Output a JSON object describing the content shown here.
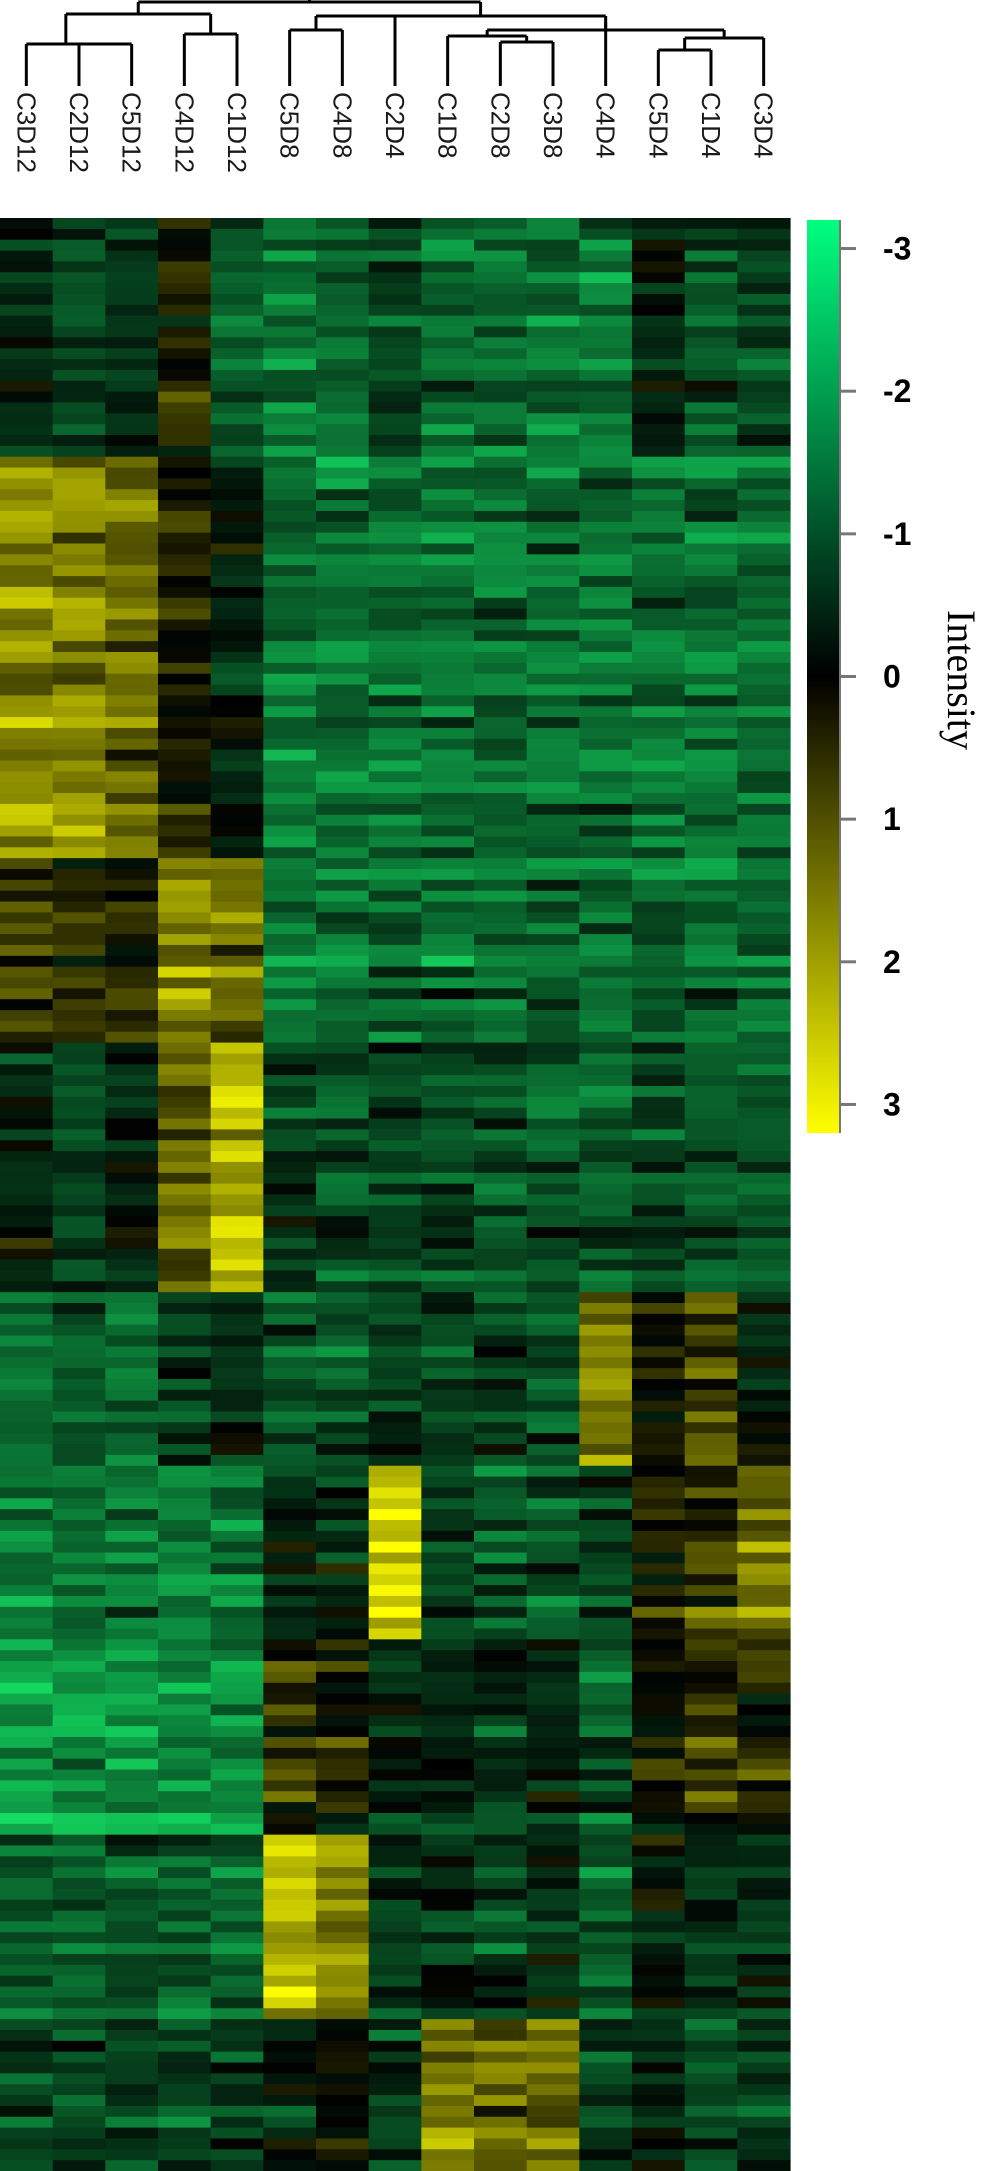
{
  "chart_data": {
    "type": "heatmap",
    "title": "",
    "columns": [
      "C3D12",
      "C2D12",
      "C5D12",
      "C4D12",
      "C1D12",
      "C5D8",
      "C4D8",
      "C2D4",
      "C1D8",
      "C2D8",
      "C3D8",
      "C4D4",
      "C5D4",
      "C1D4",
      "C3D4"
    ],
    "colorbar": {
      "label": "Intensity",
      "ticks": [
        "-3",
        "-2",
        "-1",
        "0",
        "1",
        "2",
        "3"
      ],
      "tick_values": [
        -3,
        -2,
        -1,
        0,
        1,
        2,
        3
      ],
      "range": [
        -3.2,
        3.2
      ],
      "color_low": "#00ff7f",
      "color_mid": "#000000",
      "color_high": "#ffff00"
    },
    "row_count": 180,
    "dendrogram": "hierarchical column clustering (top)",
    "block_pattern": [
      {
        "rows": [
          0,
          0.12
        ],
        "profile": [
          -0.5,
          -1.0,
          -0.5,
          0.3,
          -1.2,
          -1.5,
          -1.3,
          -0.8,
          -1.5,
          -1.3,
          -1.2,
          -1.6,
          -0.4,
          -1.0,
          -0.8
        ]
      },
      {
        "rows": [
          0.12,
          0.33
        ],
        "profile": [
          1.7,
          1.6,
          1.4,
          0.4,
          -0.3,
          -1.4,
          -1.4,
          -1.4,
          -1.4,
          -1.4,
          -1.4,
          -1.4,
          -1.4,
          -1.4,
          -1.4
        ]
      },
      {
        "rows": [
          0.33,
          0.42
        ],
        "profile": [
          0.7,
          0.3,
          0.5,
          1.6,
          1.3,
          -1.4,
          -1.4,
          -1.4,
          -1.4,
          -1.4,
          -1.4,
          -1.4,
          -1.4,
          -1.4,
          -1.4
        ]
      },
      {
        "rows": [
          0.42,
          0.55
        ],
        "profile": [
          -0.3,
          -0.8,
          -0.4,
          1.2,
          2.3,
          -0.8,
          -0.9,
          -0.7,
          -1.0,
          -1.2,
          -1.1,
          -1.3,
          -0.9,
          -1.1,
          -1.2
        ]
      },
      {
        "rows": [
          0.55,
          0.64
        ],
        "profile": [
          -1.4,
          -1.3,
          -1.3,
          -0.8,
          -0.6,
          -1.1,
          -1.1,
          -0.9,
          -0.9,
          -0.8,
          -1.0,
          1.5,
          0.2,
          0.9,
          -0.4
        ]
      },
      {
        "rows": [
          0.64,
          0.73
        ],
        "profile": [
          -1.8,
          -1.7,
          -1.7,
          -1.6,
          -1.6,
          -0.5,
          -0.6,
          2.2,
          -1.0,
          -1.2,
          -1.2,
          -0.8,
          0.3,
          0.6,
          1.3
        ]
      },
      {
        "rows": [
          0.73,
          0.83
        ],
        "profile": [
          -2.0,
          -2.0,
          -2.0,
          -1.9,
          -1.9,
          0.5,
          0.2,
          -0.4,
          -0.6,
          -0.7,
          -0.5,
          -1.1,
          0.1,
          0.6,
          0.5
        ]
      },
      {
        "rows": [
          0.83,
          0.92
        ],
        "profile": [
          -1.2,
          -1.3,
          -1.2,
          -1.2,
          -1.3,
          2.2,
          1.5,
          -0.8,
          -0.6,
          -0.8,
          -0.4,
          -1.3,
          -0.3,
          -0.7,
          -0.6
        ]
      },
      {
        "rows": [
          0.92,
          1.0
        ],
        "profile": [
          -0.9,
          -0.9,
          -0.9,
          -1.0,
          -1.0,
          -0.5,
          -0.2,
          -0.9,
          1.5,
          1.0,
          1.2,
          -0.8,
          -0.6,
          -1.0,
          -0.8
        ]
      }
    ]
  }
}
